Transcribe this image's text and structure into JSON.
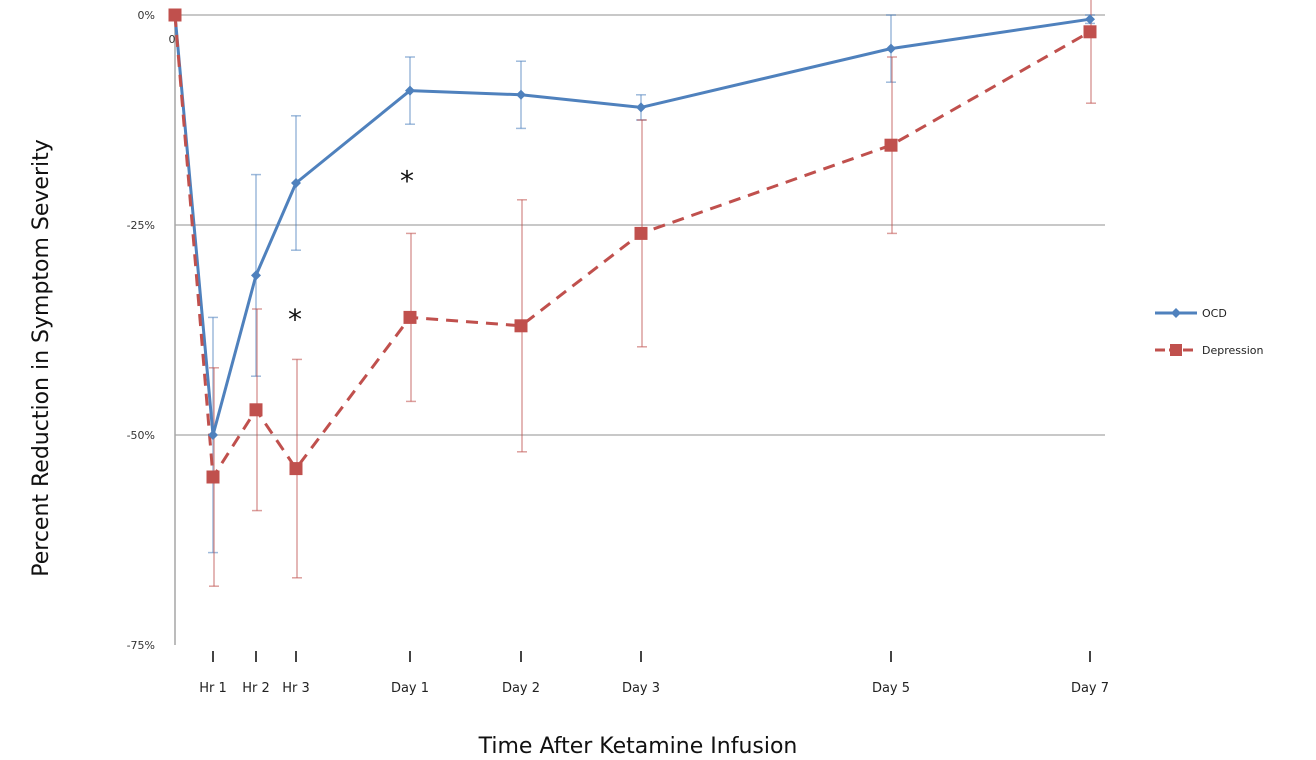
{
  "chart_data": {
    "type": "line",
    "title": "",
    "xlabel": "Time After Ketamine Infusion",
    "ylabel": "Percent Reduction in Symptom Severity",
    "ylim": [
      -75,
      0
    ],
    "yticks": [
      {
        "value": 0,
        "label": "0%"
      },
      {
        "value": -25,
        "label": "-25%"
      },
      {
        "value": -50,
        "label": "-50%"
      },
      {
        "value": -75,
        "label": "-75%"
      }
    ],
    "grid": true,
    "legend_position": "right",
    "baseline_label": "0",
    "time_points": [
      {
        "hours": 0,
        "label": ""
      },
      {
        "hours": 1,
        "label": "Hr 1"
      },
      {
        "hours": 2,
        "label": "Hr 2"
      },
      {
        "hours": 3,
        "label": "Hr 3"
      },
      {
        "hours": 24,
        "label": "Day 1"
      },
      {
        "hours": 48,
        "label": "Day 2"
      },
      {
        "hours": 72,
        "label": "Day 3"
      },
      {
        "hours": 120,
        "label": "Day 5"
      },
      {
        "hours": 168,
        "label": "Day 7"
      }
    ],
    "series": [
      {
        "name": "OCD",
        "color": "#4f81bd",
        "marker": "diamond",
        "line_style": "solid",
        "values": [
          0,
          -50,
          -31,
          -20,
          -9,
          -9.5,
          -11,
          -4,
          -0.5
        ],
        "error": [
          0,
          14,
          12,
          8,
          4,
          4,
          1.5,
          4,
          0.5
        ]
      },
      {
        "name": "Depression",
        "color": "#c0504d",
        "marker": "square",
        "line_style": "dashed",
        "values": [
          0,
          -55,
          -47,
          -54,
          -36,
          -37,
          -26,
          -15.5,
          -2
        ],
        "error": [
          0,
          13,
          12,
          13,
          10,
          15,
          13.5,
          10.5,
          8.5
        ]
      }
    ],
    "annotations": [
      {
        "text": "*",
        "at_hours": 3,
        "at_value": -35
      },
      {
        "text": "*",
        "at_hours": 24,
        "at_value": -18.5
      }
    ]
  }
}
